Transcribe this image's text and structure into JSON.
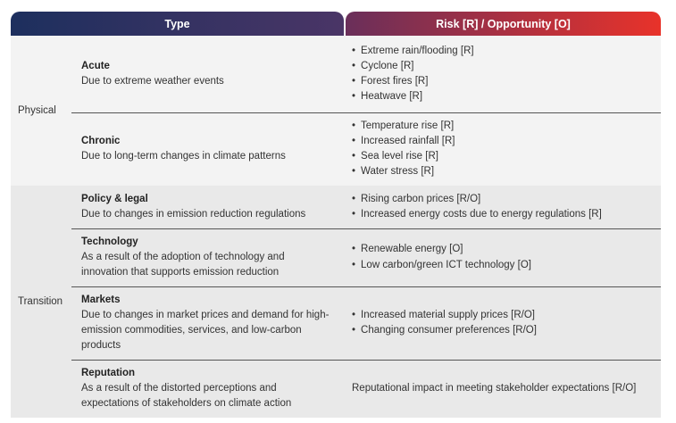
{
  "header": {
    "type": "Type",
    "risk": "Risk [R] / Opportunity [O]"
  },
  "groups": [
    {
      "label": "Physical",
      "rows": [
        {
          "name": "Acute",
          "description": "Due to extreme weather events",
          "risks": [
            "Extreme rain/flooding [R]",
            "Cyclone [R]",
            "Forest fires [R]",
            "Heatwave [R]"
          ]
        },
        {
          "name": "Chronic",
          "description": "Due to long-term changes in climate patterns",
          "risks": [
            "Temperature rise [R]",
            "Increased rainfall [R]",
            "Sea level rise [R]",
            "Water stress [R]"
          ]
        }
      ]
    },
    {
      "label": "Transition",
      "rows": [
        {
          "name": "Policy & legal",
          "description": "Due to changes in emission reduction regulations",
          "risks": [
            "Rising carbon prices [R/O]",
            "Increased energy costs due to energy regulations [R]"
          ]
        },
        {
          "name": "Technology",
          "description": "As a result of the adoption of technology and innovation that supports emission reduction",
          "risks": [
            "Renewable energy [O]",
            "Low carbon/green ICT technology [O]"
          ]
        },
        {
          "name": "Markets",
          "description": "Due to changes in market prices and demand for high-emission commodities, services, and low-carbon products",
          "risks": [
            "Increased material supply prices [R/O]",
            "Changing consumer preferences [R/O]"
          ]
        },
        {
          "name": "Reputation",
          "description": "As a result of the distorted perceptions and expectations of stakeholders on climate action",
          "risk_text": "Reputational impact in meeting stakeholder expectations [R/O]"
        }
      ]
    }
  ]
}
